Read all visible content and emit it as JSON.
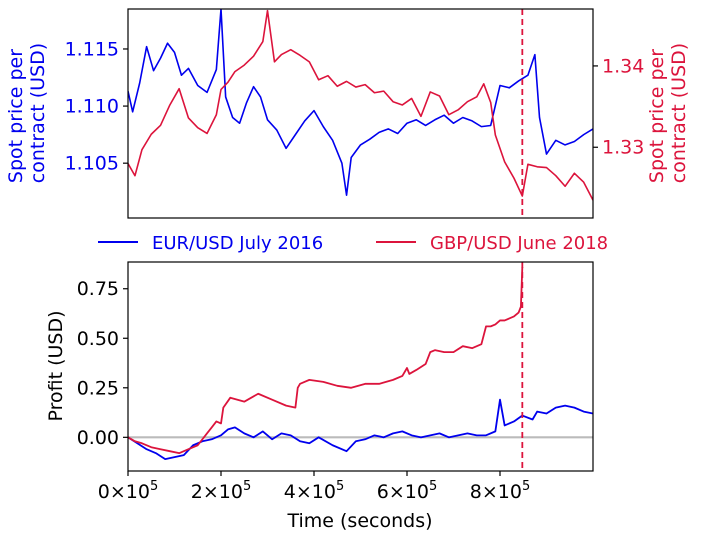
{
  "colors": {
    "eur": "#0000ee",
    "gbp": "#dc143c",
    "zero_line": "#bbbbbb",
    "axis": "#000000",
    "cutoff_line": "#dc143c"
  },
  "legend": {
    "placement": "between-panels",
    "entries": [
      "EUR/USD July 2016",
      "GBP/USD June 2018"
    ]
  },
  "chart_data": [
    {
      "type": "line",
      "panel": "top",
      "title": "",
      "xlabel": "",
      "ylabel_left": "Spot price per\ncontract (USD)",
      "ylabel_right": "Spot price per\ncontract (USD)",
      "xlim": [
        0,
        1000000
      ],
      "ylim_left": [
        1.1002,
        1.1185
      ],
      "ylim_right": [
        1.3213,
        1.347
      ],
      "yticks_left": [
        1.105,
        1.11,
        1.115
      ],
      "ytick_labels_left": [
        "1.105",
        "1.110",
        "1.115"
      ],
      "yticks_right": [
        1.33,
        1.34
      ],
      "ytick_labels_right": [
        "1.33",
        "1.34"
      ],
      "grid": false,
      "vline_x": 848000,
      "series": [
        {
          "name": "EUR/USD July 2016",
          "axis": "left",
          "x": [
            0,
            10000,
            25000,
            40000,
            55000,
            70000,
            85000,
            100000,
            115000,
            130000,
            150000,
            170000,
            190000,
            200000,
            210000,
            225000,
            240000,
            255000,
            270000,
            285000,
            300000,
            320000,
            340000,
            360000,
            380000,
            400000,
            420000,
            440000,
            460000,
            470000,
            480000,
            500000,
            520000,
            540000,
            560000,
            580000,
            600000,
            620000,
            640000,
            660000,
            680000,
            700000,
            720000,
            740000,
            760000,
            780000,
            800000,
            820000,
            840000,
            860000,
            875000,
            885000,
            900000,
            920000,
            940000,
            960000,
            980000,
            1000000
          ],
          "y": [
            1.1113,
            1.1095,
            1.112,
            1.1152,
            1.1131,
            1.1142,
            1.1155,
            1.1147,
            1.1127,
            1.1133,
            1.1118,
            1.1112,
            1.1132,
            1.1185,
            1.1108,
            1.109,
            1.1085,
            1.1103,
            1.1117,
            1.1108,
            1.1088,
            1.1079,
            1.1063,
            1.1075,
            1.1087,
            1.1096,
            1.1082,
            1.107,
            1.105,
            1.1022,
            1.1055,
            1.1066,
            1.1071,
            1.1077,
            1.108,
            1.1076,
            1.1085,
            1.1088,
            1.1083,
            1.1088,
            1.1092,
            1.1085,
            1.109,
            1.1087,
            1.1082,
            1.1083,
            1.1118,
            1.1116,
            1.1122,
            1.1127,
            1.1145,
            1.109,
            1.1058,
            1.107,
            1.1066,
            1.1069,
            1.1075,
            1.108
          ]
        },
        {
          "name": "GBP/USD June 2018",
          "axis": "right",
          "x": [
            0,
            15000,
            30000,
            50000,
            70000,
            90000,
            110000,
            130000,
            150000,
            170000,
            190000,
            200000,
            215000,
            230000,
            250000,
            270000,
            290000,
            300000,
            315000,
            330000,
            350000,
            370000,
            390000,
            410000,
            430000,
            450000,
            470000,
            490000,
            510000,
            530000,
            550000,
            570000,
            590000,
            610000,
            630000,
            650000,
            670000,
            690000,
            710000,
            730000,
            750000,
            765000,
            780000,
            790000,
            810000,
            830000,
            848000,
            860000,
            880000,
            900000,
            920000,
            940000,
            960000,
            980000,
            1000000
          ],
          "y": [
            1.328,
            1.3265,
            1.3297,
            1.3316,
            1.3327,
            1.3352,
            1.3372,
            1.3336,
            1.3324,
            1.3317,
            1.334,
            1.3371,
            1.338,
            1.3393,
            1.3401,
            1.3412,
            1.343,
            1.3468,
            1.3405,
            1.3414,
            1.342,
            1.3413,
            1.3405,
            1.3383,
            1.3388,
            1.3375,
            1.3381,
            1.3374,
            1.3377,
            1.3367,
            1.3369,
            1.3356,
            1.3352,
            1.336,
            1.3338,
            1.3368,
            1.3363,
            1.334,
            1.3346,
            1.3356,
            1.3362,
            1.3378,
            1.3355,
            1.3315,
            1.3282,
            1.3262,
            1.324,
            1.3279,
            1.3276,
            1.3275,
            1.3265,
            1.3252,
            1.3268,
            1.3257,
            1.3235
          ]
        }
      ]
    },
    {
      "type": "line",
      "panel": "bottom",
      "title": "",
      "xlabel": "Time (seconds)",
      "ylabel": "Profit (USD)",
      "xlim": [
        0,
        1000000
      ],
      "ylim": [
        -0.17,
        0.885
      ],
      "xticks": [
        0,
        200000,
        400000,
        600000,
        800000
      ],
      "xtick_labels": [
        {
          "mantissa": "0",
          "exponent": "5"
        },
        {
          "mantissa": "2",
          "exponent": "5"
        },
        {
          "mantissa": "4",
          "exponent": "5"
        },
        {
          "mantissa": "6",
          "exponent": "5"
        },
        {
          "mantissa": "8",
          "exponent": "5"
        }
      ],
      "yticks": [
        0.0,
        0.25,
        0.5,
        0.75
      ],
      "ytick_labels": [
        "0.00",
        "0.25",
        "0.50",
        "0.75"
      ],
      "grid": false,
      "hline_y": 0,
      "vline_x": 848000,
      "series": [
        {
          "name": "EUR/USD July 2016",
          "x": [
            0,
            20000,
            40000,
            60000,
            80000,
            100000,
            120000,
            140000,
            160000,
            180000,
            200000,
            215000,
            230000,
            250000,
            270000,
            290000,
            310000,
            330000,
            350000,
            370000,
            390000,
            410000,
            440000,
            470000,
            490000,
            510000,
            530000,
            550000,
            570000,
            590000,
            610000,
            630000,
            650000,
            670000,
            690000,
            710000,
            730000,
            750000,
            770000,
            790000,
            800000,
            810000,
            830000,
            848000,
            870000,
            880000,
            900000,
            920000,
            940000,
            960000,
            980000,
            1000000
          ],
          "y": [
            0.0,
            -0.03,
            -0.06,
            -0.08,
            -0.11,
            -0.1,
            -0.09,
            -0.04,
            -0.02,
            -0.01,
            0.01,
            0.04,
            0.05,
            0.02,
            0.0,
            0.03,
            -0.01,
            0.02,
            0.01,
            -0.02,
            -0.03,
            0.0,
            -0.04,
            -0.07,
            -0.02,
            -0.01,
            0.01,
            0.0,
            0.02,
            0.03,
            0.01,
            0.0,
            0.01,
            0.02,
            0.0,
            0.01,
            0.02,
            0.01,
            0.01,
            0.03,
            0.19,
            0.06,
            0.08,
            0.11,
            0.09,
            0.13,
            0.12,
            0.15,
            0.16,
            0.15,
            0.13,
            0.12
          ]
        },
        {
          "name": "GBP/USD June 2018",
          "x": [
            0,
            15000,
            30000,
            50000,
            70000,
            90000,
            110000,
            130000,
            150000,
            170000,
            180000,
            190000,
            200000,
            205000,
            220000,
            250000,
            280000,
            310000,
            340000,
            360000,
            365000,
            370000,
            390000,
            420000,
            450000,
            480000,
            510000,
            540000,
            570000,
            590000,
            600000,
            605000,
            620000,
            640000,
            650000,
            660000,
            680000,
            700000,
            720000,
            740000,
            760000,
            770000,
            780000,
            790000,
            800000,
            810000,
            820000,
            830000,
            840000,
            845000,
            848000
          ],
          "y": [
            0.0,
            -0.02,
            -0.03,
            -0.05,
            -0.06,
            -0.07,
            -0.08,
            -0.06,
            -0.04,
            0.02,
            0.05,
            0.08,
            0.07,
            0.15,
            0.2,
            0.18,
            0.22,
            0.19,
            0.16,
            0.15,
            0.25,
            0.27,
            0.29,
            0.28,
            0.26,
            0.25,
            0.27,
            0.27,
            0.29,
            0.31,
            0.35,
            0.32,
            0.34,
            0.37,
            0.43,
            0.44,
            0.43,
            0.43,
            0.46,
            0.45,
            0.47,
            0.56,
            0.56,
            0.57,
            0.59,
            0.59,
            0.6,
            0.61,
            0.63,
            0.66,
            0.86
          ]
        }
      ]
    }
  ]
}
